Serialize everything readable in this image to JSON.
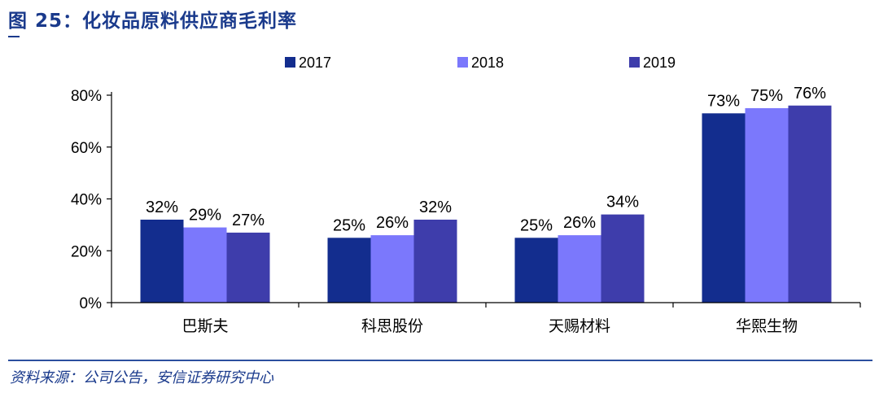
{
  "figure": {
    "title": "图 25：化妆品原料供应商毛利率",
    "source": "资料来源：公司公告，安信证券研究中心"
  },
  "chart_data": {
    "type": "bar",
    "categories": [
      "巴斯夫",
      "科思股份",
      "天赐材料",
      "华熙生物"
    ],
    "series": [
      {
        "name": "2017",
        "values": [
          32,
          25,
          25,
          73
        ],
        "labels": [
          "32%",
          "25%",
          "25%",
          "73%"
        ],
        "color": "#132d8e"
      },
      {
        "name": "2018",
        "values": [
          29,
          26,
          26,
          75
        ],
        "labels": [
          "29%",
          "26%",
          "26%",
          "75%"
        ],
        "color": "#7b78fc"
      },
      {
        "name": "2019",
        "values": [
          27,
          32,
          34,
          76
        ],
        "labels": [
          "27%",
          "32%",
          "34%",
          "76%"
        ],
        "color": "#3e3dab"
      }
    ],
    "ylim": [
      0,
      80
    ],
    "yticks": [
      0,
      20,
      40,
      60,
      80
    ],
    "ytick_labels": [
      "0%",
      "20%",
      "40%",
      "60%",
      "80%"
    ],
    "grid": false,
    "legend": "top"
  }
}
